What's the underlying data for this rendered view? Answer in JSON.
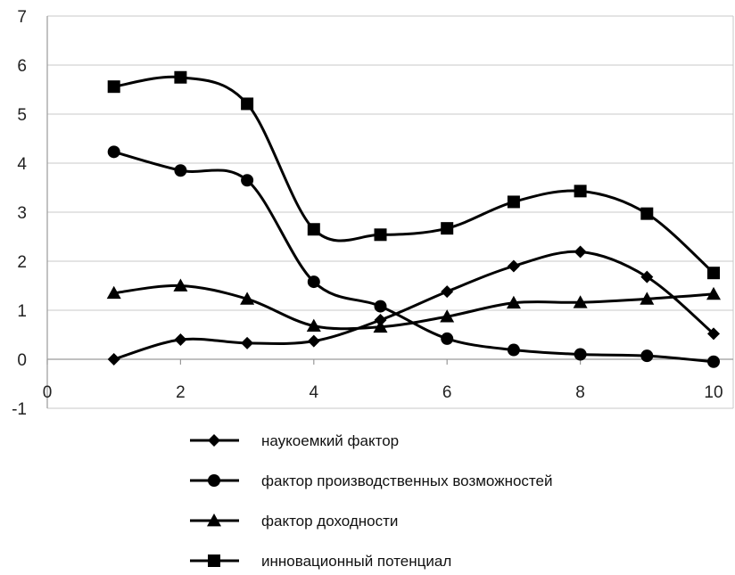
{
  "chart_data": {
    "type": "line",
    "title": "",
    "xlabel": "",
    "ylabel": "",
    "xlim": [
      0,
      10
    ],
    "ylim": [
      -1,
      7
    ],
    "x_ticks": [
      0,
      2,
      4,
      6,
      8,
      10
    ],
    "y_ticks": [
      -1,
      0,
      1,
      2,
      3,
      4,
      5,
      6,
      7
    ],
    "grid": "horizontal",
    "smooth": true,
    "legend_position": "bottom",
    "x": [
      1,
      2,
      3,
      4,
      5,
      6,
      7,
      8,
      9,
      10
    ],
    "series": [
      {
        "name": "наукоемкий фактор",
        "marker": "diamond",
        "color": "#000000",
        "values": [
          0.0,
          0.4,
          0.33,
          0.37,
          0.8,
          1.38,
          1.9,
          2.19,
          1.68,
          0.52
        ]
      },
      {
        "name": "фактор производственных возможностей",
        "marker": "circle",
        "color": "#000000",
        "values": [
          4.23,
          3.85,
          3.65,
          1.58,
          1.08,
          0.42,
          0.19,
          0.1,
          0.07,
          -0.05
        ]
      },
      {
        "name": "фактор доходности",
        "marker": "triangle",
        "color": "#000000",
        "values": [
          1.35,
          1.5,
          1.23,
          0.68,
          0.66,
          0.87,
          1.15,
          1.16,
          1.23,
          1.33
        ]
      },
      {
        "name": "инновационный потенциал",
        "marker": "square",
        "color": "#000000",
        "values": [
          5.56,
          5.75,
          5.21,
          2.65,
          2.54,
          2.67,
          3.21,
          3.43,
          2.97,
          1.76
        ]
      }
    ]
  }
}
